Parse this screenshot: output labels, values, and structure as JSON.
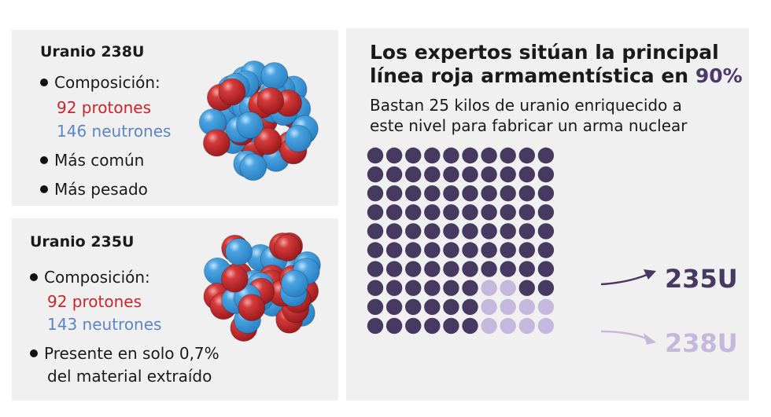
{
  "uranium_238": {
    "title": "Uranio 238U",
    "composition_label": "Composición:",
    "protons": "92 protones",
    "neutrons": "146 neutrones",
    "bullet_common": "Más común",
    "bullet_heavy": "Más pesado"
  },
  "uranium_235": {
    "title": "Uranio 235U",
    "composition_label": "Composición:",
    "protons": "92 protones",
    "neutrons": "143 neutrones",
    "presence_line1": "Presente en solo 0,7%",
    "presence_line2": "del material extraído"
  },
  "enrichment": {
    "heading_line1": "Los expertos sitúan la principal",
    "heading_line2_prefix": "línea roja armamentística en ",
    "heading_percent": "90%",
    "subhead_line1": "Bastan 25 kilos de uranio enriquecido a",
    "subhead_line2": "este nivel para fabricar un arma nuclear",
    "grid_total": 100,
    "u235_count": 90,
    "u238_count": 10,
    "label_235": "235U",
    "label_238": "238U"
  },
  "colors": {
    "u235": "#47395f",
    "u238": "#c6b7dd",
    "proton": "#c8262b",
    "neutron": "#2b82c4",
    "panel": "#f0f0f0"
  }
}
